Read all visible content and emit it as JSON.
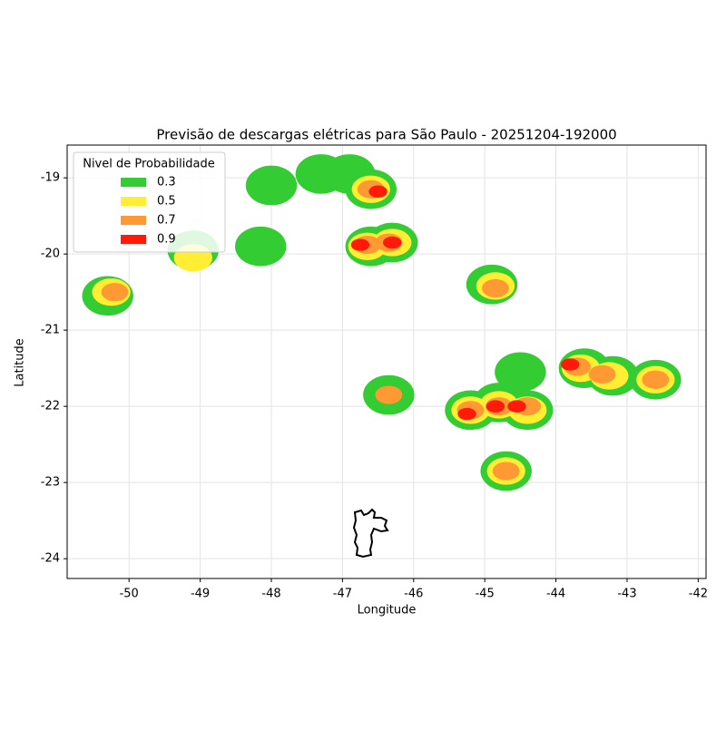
{
  "chart_data": {
    "type": "contour-map",
    "title": "Previsão de descargas elétricas para São Paulo - 20251204-192000",
    "x_label": "Longitude",
    "y_label": "Latitude",
    "xlim": [
      -50.87,
      -41.89
    ],
    "ylim": [
      -24.26,
      -18.57
    ],
    "xticks": [
      -50,
      -49,
      -48,
      -47,
      -46,
      -45,
      -44,
      -43,
      -42
    ],
    "yticks": [
      -24,
      -23,
      -22,
      -21,
      -20,
      -19
    ],
    "grid": true,
    "legend_title": "Nivel de Probabilidade",
    "legend_position": "upper left",
    "series": [
      {
        "name": "0.3",
        "color": "#33cc33",
        "x": [
          -46.6,
          -46.6,
          -46.3,
          -44.9,
          -45.2,
          -44.8,
          -44.4,
          -44.7,
          -43.6,
          -43.2,
          -42.6,
          -46.35,
          -50.3,
          -49.1,
          -44.5,
          -48.15,
          -46.9,
          -47.3,
          -48.0
        ],
        "y": [
          -19.15,
          -19.9,
          -19.85,
          -20.4,
          -22.05,
          -21.95,
          -22.05,
          -22.85,
          -21.5,
          -21.6,
          -21.65,
          -21.85,
          -20.55,
          -19.95,
          -21.55,
          -19.9,
          -18.95,
          -18.95,
          -19.1
        ]
      },
      {
        "name": "0.5",
        "color": "#ffee33",
        "x": [
          -46.6,
          -46.65,
          -46.3,
          -44.85,
          -45.2,
          -44.8,
          -44.4,
          -44.7,
          -43.65,
          -43.25,
          -42.6,
          -49.1,
          -50.25
        ],
        "y": [
          -19.15,
          -19.9,
          -19.85,
          -20.42,
          -22.05,
          -21.98,
          -22.05,
          -22.85,
          -21.5,
          -21.6,
          -21.65,
          -20.05,
          -20.5
        ]
      },
      {
        "name": "0.7",
        "color": "#ff9933",
        "x": [
          -46.6,
          -46.65,
          -46.35,
          -44.85,
          -45.2,
          -44.8,
          -44.4,
          -44.7,
          -43.7,
          -43.35,
          -42.6,
          -50.2,
          -46.35
        ],
        "y": [
          -19.15,
          -19.88,
          -19.85,
          -20.45,
          -22.05,
          -22.0,
          -22.0,
          -22.85,
          -21.48,
          -21.58,
          -21.65,
          -20.5,
          -21.85
        ]
      },
      {
        "name": "0.9",
        "color": "#ff1a0a",
        "x": [
          -46.5,
          -46.75,
          -46.3,
          -45.25,
          -44.85,
          -44.55,
          -43.8
        ],
        "y": [
          -19.18,
          -19.88,
          -19.85,
          -22.1,
          -22.0,
          -22.0,
          -21.45
        ]
      }
    ]
  }
}
